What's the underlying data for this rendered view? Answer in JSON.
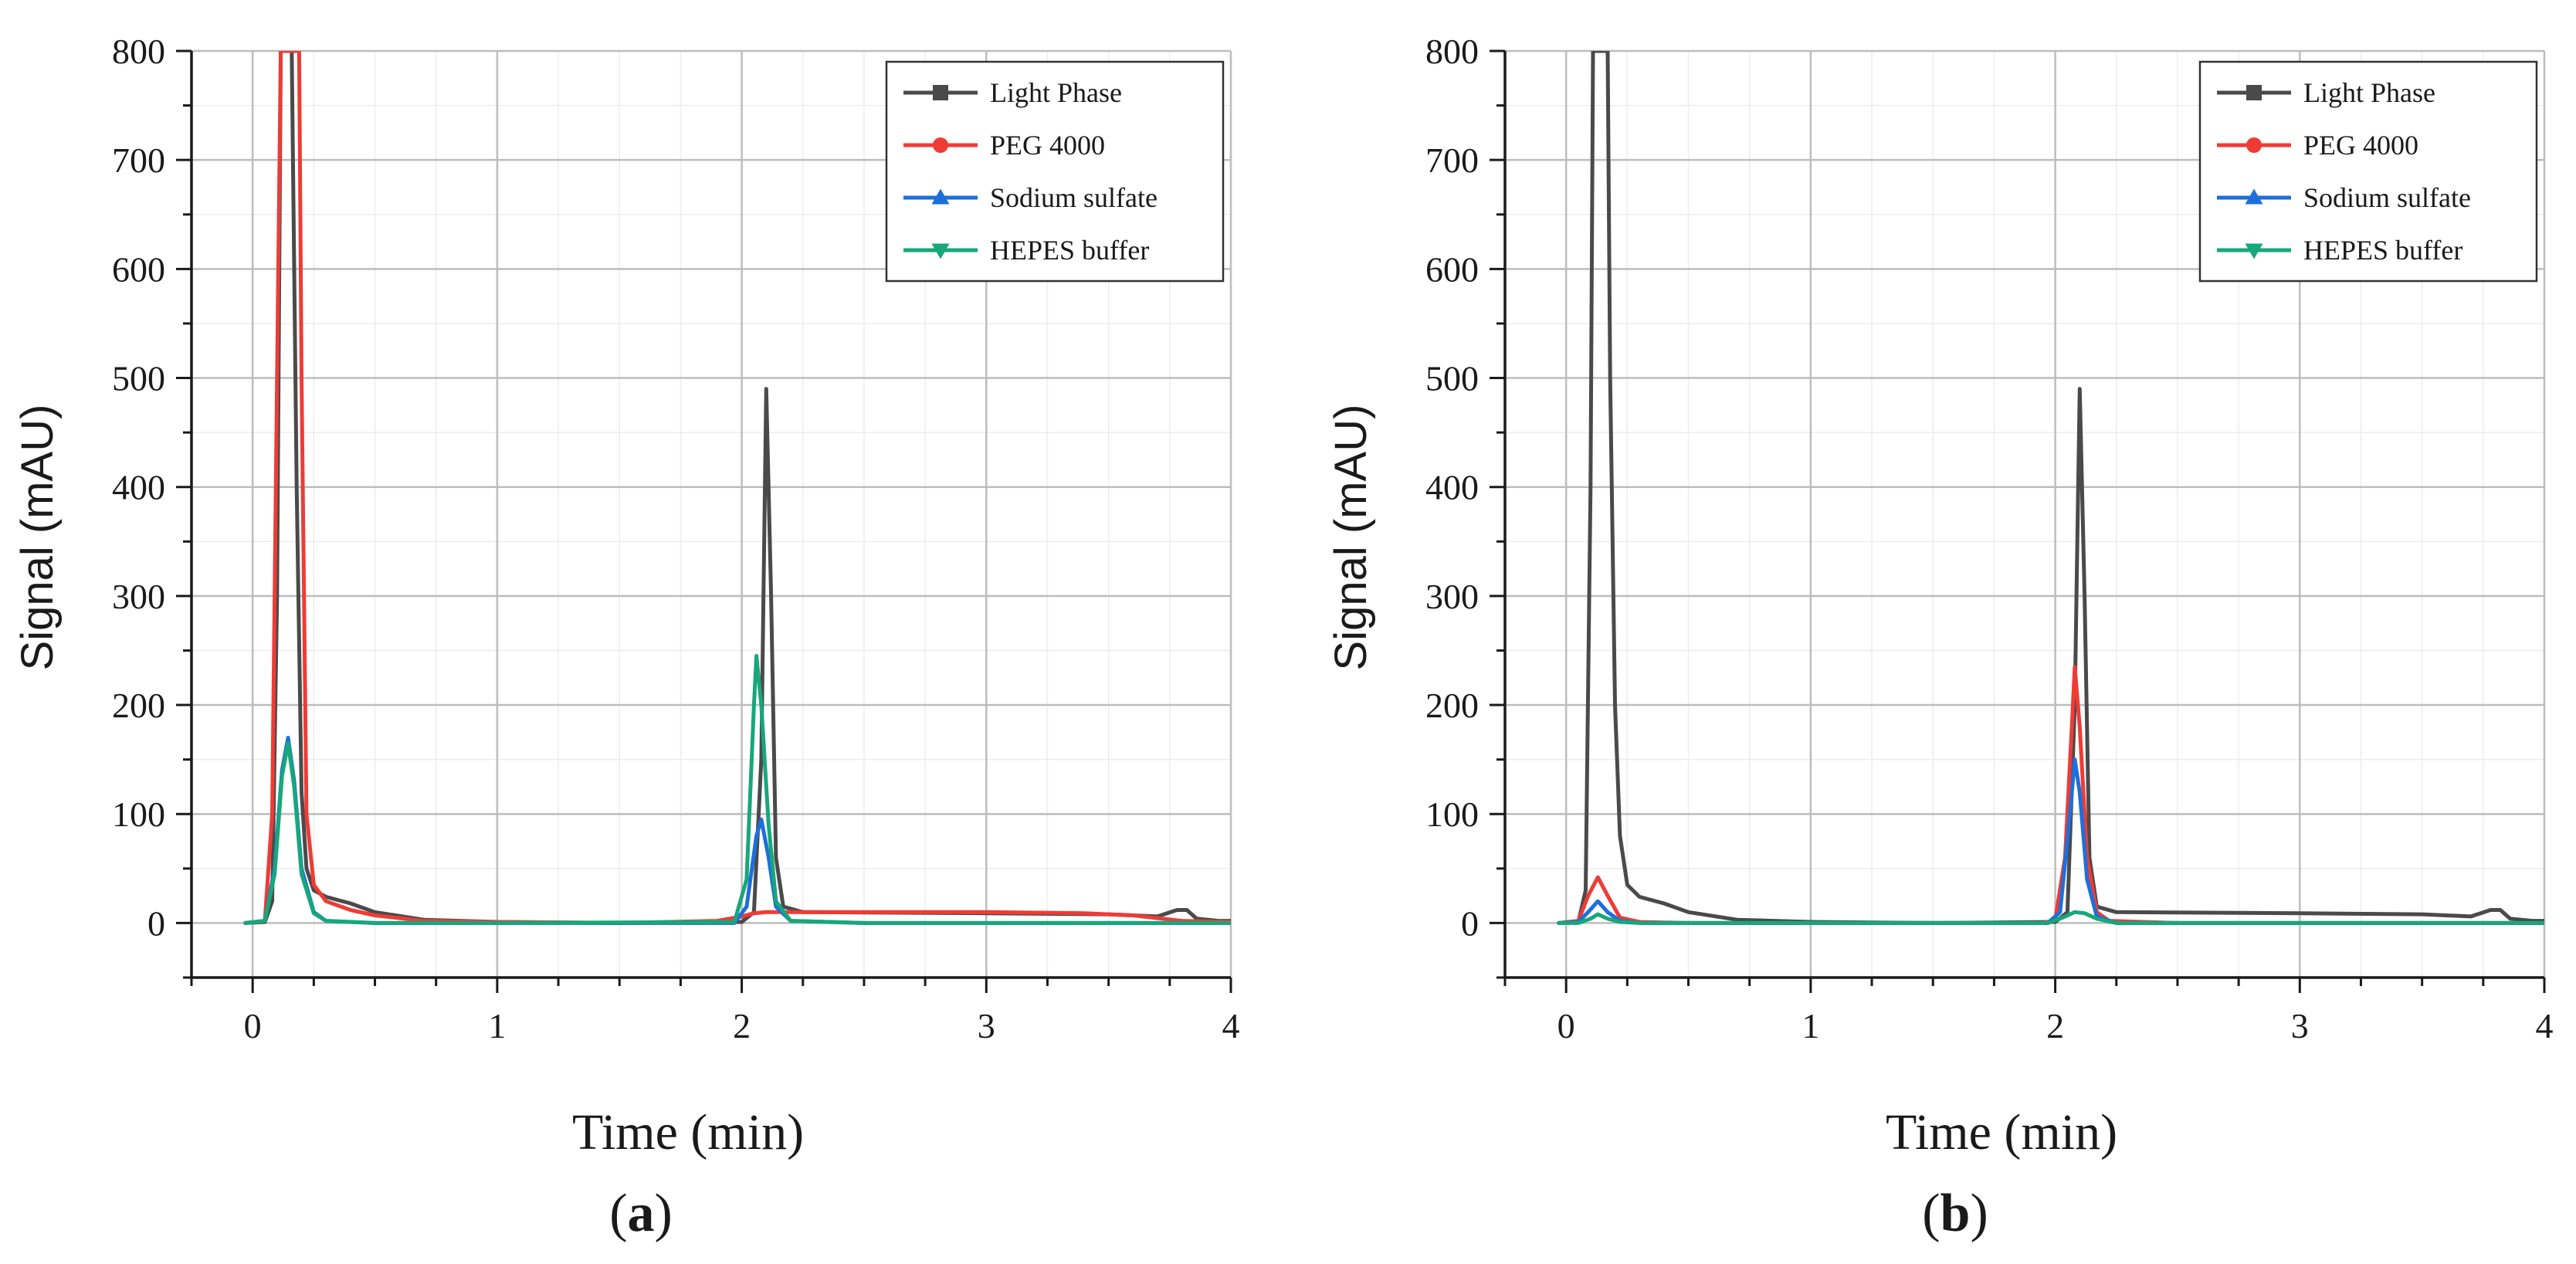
{
  "figure": {
    "panel_labels": [
      {
        "open": "(",
        "letter": "a",
        "close": ")"
      },
      {
        "open": "(",
        "letter": "b",
        "close": ")"
      }
    ]
  },
  "chart_data": [
    {
      "id": "a",
      "type": "line",
      "title": "",
      "xlabel": "Time (min)",
      "ylabel": "Signal (mAU)",
      "xlim": [
        -0.25,
        4
      ],
      "ylim": [
        -50,
        800
      ],
      "xticks": [
        0,
        1,
        2,
        3,
        4
      ],
      "yticks": [
        0,
        100,
        200,
        300,
        400,
        500,
        600,
        700,
        800
      ],
      "grid": true,
      "legend_position": "top-right",
      "series": [
        {
          "name": "Light Phase",
          "color": "#4a4a4a",
          "marker": "square",
          "points": [
            [
              -0.03,
              0
            ],
            [
              0.05,
              1
            ],
            [
              0.08,
              20
            ],
            [
              0.1,
              300
            ],
            [
              0.115,
              800
            ],
            [
              0.16,
              800
            ],
            [
              0.18,
              400
            ],
            [
              0.2,
              120
            ],
            [
              0.22,
              50
            ],
            [
              0.25,
              30
            ],
            [
              0.3,
              24
            ],
            [
              0.4,
              18
            ],
            [
              0.5,
              10
            ],
            [
              0.7,
              3
            ],
            [
              1.0,
              1
            ],
            [
              1.5,
              0
            ],
            [
              2.0,
              1
            ],
            [
              2.05,
              10
            ],
            [
              2.08,
              150
            ],
            [
              2.1,
              490
            ],
            [
              2.12,
              300
            ],
            [
              2.14,
              60
            ],
            [
              2.17,
              15
            ],
            [
              2.25,
              10
            ],
            [
              3.0,
              9
            ],
            [
              3.5,
              8
            ],
            [
              3.7,
              6
            ],
            [
              3.78,
              12
            ],
            [
              3.82,
              12
            ],
            [
              3.86,
              4
            ],
            [
              3.95,
              2
            ],
            [
              4.0,
              2
            ]
          ]
        },
        {
          "name": "PEG 4000",
          "color": "#ef3b36",
          "marker": "circle",
          "points": [
            [
              -0.03,
              0
            ],
            [
              0.05,
              2
            ],
            [
              0.08,
              100
            ],
            [
              0.1,
              500
            ],
            [
              0.115,
              800
            ],
            [
              0.19,
              800
            ],
            [
              0.2,
              500
            ],
            [
              0.22,
              100
            ],
            [
              0.25,
              35
            ],
            [
              0.3,
              20
            ],
            [
              0.4,
              12
            ],
            [
              0.5,
              7
            ],
            [
              0.7,
              2
            ],
            [
              1.0,
              1
            ],
            [
              1.5,
              0
            ],
            [
              1.9,
              2
            ],
            [
              2.0,
              6
            ],
            [
              2.05,
              9
            ],
            [
              2.1,
              10
            ],
            [
              2.2,
              10
            ],
            [
              2.5,
              10
            ],
            [
              3.0,
              10
            ],
            [
              3.4,
              9
            ],
            [
              3.6,
              7
            ],
            [
              3.8,
              2
            ],
            [
              4.0,
              1
            ]
          ]
        },
        {
          "name": "Sodium sulfate",
          "color": "#1e6fd9",
          "marker": "triangle-up",
          "points": [
            [
              -0.03,
              0
            ],
            [
              0.05,
              2
            ],
            [
              0.09,
              50
            ],
            [
              0.12,
              140
            ],
            [
              0.145,
              170
            ],
            [
              0.17,
              130
            ],
            [
              0.2,
              50
            ],
            [
              0.25,
              10
            ],
            [
              0.3,
              2
            ],
            [
              0.5,
              0
            ],
            [
              1.0,
              0
            ],
            [
              1.97,
              0
            ],
            [
              2.02,
              15
            ],
            [
              2.06,
              80
            ],
            [
              2.08,
              95
            ],
            [
              2.11,
              60
            ],
            [
              2.14,
              15
            ],
            [
              2.2,
              2
            ],
            [
              2.5,
              0
            ],
            [
              4.0,
              0
            ]
          ]
        },
        {
          "name": "HEPES buffer",
          "color": "#17a77a",
          "marker": "triangle-down",
          "points": [
            [
              -0.03,
              0
            ],
            [
              0.05,
              2
            ],
            [
              0.09,
              45
            ],
            [
              0.12,
              135
            ],
            [
              0.145,
              165
            ],
            [
              0.17,
              125
            ],
            [
              0.2,
              45
            ],
            [
              0.25,
              9
            ],
            [
              0.3,
              2
            ],
            [
              0.5,
              0
            ],
            [
              1.0,
              0
            ],
            [
              1.97,
              1
            ],
            [
              2.02,
              40
            ],
            [
              2.05,
              200
            ],
            [
              2.06,
              245
            ],
            [
              2.08,
              200
            ],
            [
              2.11,
              90
            ],
            [
              2.14,
              20
            ],
            [
              2.2,
              2
            ],
            [
              2.5,
              0
            ],
            [
              4.0,
              0
            ]
          ]
        }
      ]
    },
    {
      "id": "b",
      "type": "line",
      "title": "",
      "xlabel": "Time (min)",
      "ylabel": "Signal (mAU)",
      "xlim": [
        -0.25,
        4
      ],
      "ylim": [
        -50,
        800
      ],
      "xticks": [
        0,
        1,
        2,
        3,
        4
      ],
      "yticks": [
        0,
        100,
        200,
        300,
        400,
        500,
        600,
        700,
        800
      ],
      "grid": true,
      "legend_position": "top-right",
      "series": [
        {
          "name": "Light Phase",
          "color": "#4a4a4a",
          "marker": "square",
          "points": [
            [
              -0.03,
              0
            ],
            [
              0.05,
              1
            ],
            [
              0.08,
              30
            ],
            [
              0.1,
              400
            ],
            [
              0.11,
              800
            ],
            [
              0.17,
              800
            ],
            [
              0.18,
              500
            ],
            [
              0.2,
              200
            ],
            [
              0.22,
              80
            ],
            [
              0.25,
              35
            ],
            [
              0.3,
              24
            ],
            [
              0.4,
              18
            ],
            [
              0.5,
              10
            ],
            [
              0.7,
              3
            ],
            [
              1.0,
              1
            ],
            [
              1.5,
              0
            ],
            [
              2.0,
              1
            ],
            [
              2.05,
              10
            ],
            [
              2.08,
              200
            ],
            [
              2.1,
              490
            ],
            [
              2.12,
              300
            ],
            [
              2.14,
              60
            ],
            [
              2.17,
              15
            ],
            [
              2.25,
              10
            ],
            [
              3.0,
              9
            ],
            [
              3.5,
              8
            ],
            [
              3.7,
              6
            ],
            [
              3.78,
              12
            ],
            [
              3.82,
              12
            ],
            [
              3.86,
              4
            ],
            [
              3.95,
              2
            ],
            [
              4.0,
              2
            ]
          ]
        },
        {
          "name": "PEG 4000",
          "color": "#ef3b36",
          "marker": "circle",
          "points": [
            [
              -0.03,
              0
            ],
            [
              0.05,
              2
            ],
            [
              0.09,
              25
            ],
            [
              0.13,
              42
            ],
            [
              0.17,
              25
            ],
            [
              0.22,
              5
            ],
            [
              0.3,
              1
            ],
            [
              0.5,
              0
            ],
            [
              1.0,
              0
            ],
            [
              1.95,
              0
            ],
            [
              2.0,
              3
            ],
            [
              2.04,
              60
            ],
            [
              2.07,
              190
            ],
            [
              2.08,
              235
            ],
            [
              2.1,
              180
            ],
            [
              2.13,
              60
            ],
            [
              2.17,
              10
            ],
            [
              2.22,
              2
            ],
            [
              2.5,
              0
            ],
            [
              4.0,
              0
            ]
          ]
        },
        {
          "name": "Sodium sulfate",
          "color": "#1e6fd9",
          "marker": "triangle-up",
          "points": [
            [
              -0.03,
              0
            ],
            [
              0.05,
              1
            ],
            [
              0.09,
              10
            ],
            [
              0.13,
              20
            ],
            [
              0.17,
              10
            ],
            [
              0.22,
              2
            ],
            [
              0.3,
              0
            ],
            [
              1.0,
              0
            ],
            [
              1.97,
              0
            ],
            [
              2.02,
              10
            ],
            [
              2.06,
              100
            ],
            [
              2.08,
              150
            ],
            [
              2.1,
              120
            ],
            [
              2.13,
              40
            ],
            [
              2.17,
              6
            ],
            [
              2.25,
              0
            ],
            [
              4.0,
              0
            ]
          ]
        },
        {
          "name": "HEPES buffer",
          "color": "#17a77a",
          "marker": "triangle-down",
          "points": [
            [
              -0.03,
              0
            ],
            [
              0.05,
              0
            ],
            [
              0.1,
              4
            ],
            [
              0.13,
              8
            ],
            [
              0.17,
              4
            ],
            [
              0.22,
              1
            ],
            [
              0.3,
              0
            ],
            [
              1.0,
              0
            ],
            [
              1.97,
              0
            ],
            [
              2.03,
              5
            ],
            [
              2.08,
              10
            ],
            [
              2.12,
              9
            ],
            [
              2.17,
              4
            ],
            [
              2.25,
              0
            ],
            [
              4.0,
              0
            ]
          ]
        }
      ]
    }
  ]
}
